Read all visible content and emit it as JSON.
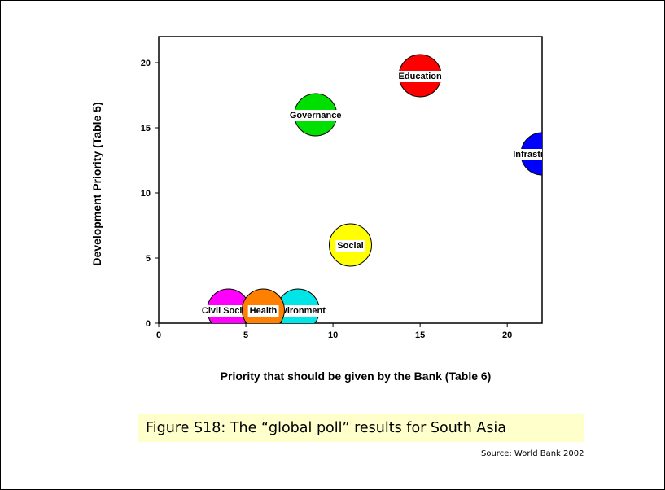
{
  "chart_data": {
    "type": "scatter",
    "style": "bubble",
    "xlabel": "Priority that should be given by the Bank (Table 6)",
    "ylabel": "Development Priority (Table 5)",
    "xlim": [
      0,
      22
    ],
    "ylim": [
      0,
      22
    ],
    "xticks": [
      0,
      5,
      10,
      15,
      20
    ],
    "yticks": [
      0,
      5,
      10,
      15,
      20
    ],
    "grid": false,
    "legend": "none",
    "points": [
      {
        "label": "Education",
        "x": 15,
        "y": 19,
        "color": "#ff0000"
      },
      {
        "label": "Governance",
        "x": 9,
        "y": 16,
        "color": "#00e000"
      },
      {
        "label": "Infrastructure",
        "x": 22,
        "y": 13,
        "color": "#0000ff"
      },
      {
        "label": "Social",
        "x": 11,
        "y": 6,
        "color": "#ffff00"
      },
      {
        "label": "Environment",
        "x": 8,
        "y": 1,
        "color": "#00e5e5"
      },
      {
        "label": "Civil Society",
        "x": 4,
        "y": 1,
        "color": "#ff00ff"
      },
      {
        "label": "Health",
        "x": 6,
        "y": 1,
        "color": "#ff8000"
      }
    ]
  },
  "caption": "Figure S18:  The “global poll” results for South Asia",
  "source": "Source:  World Bank 2002"
}
